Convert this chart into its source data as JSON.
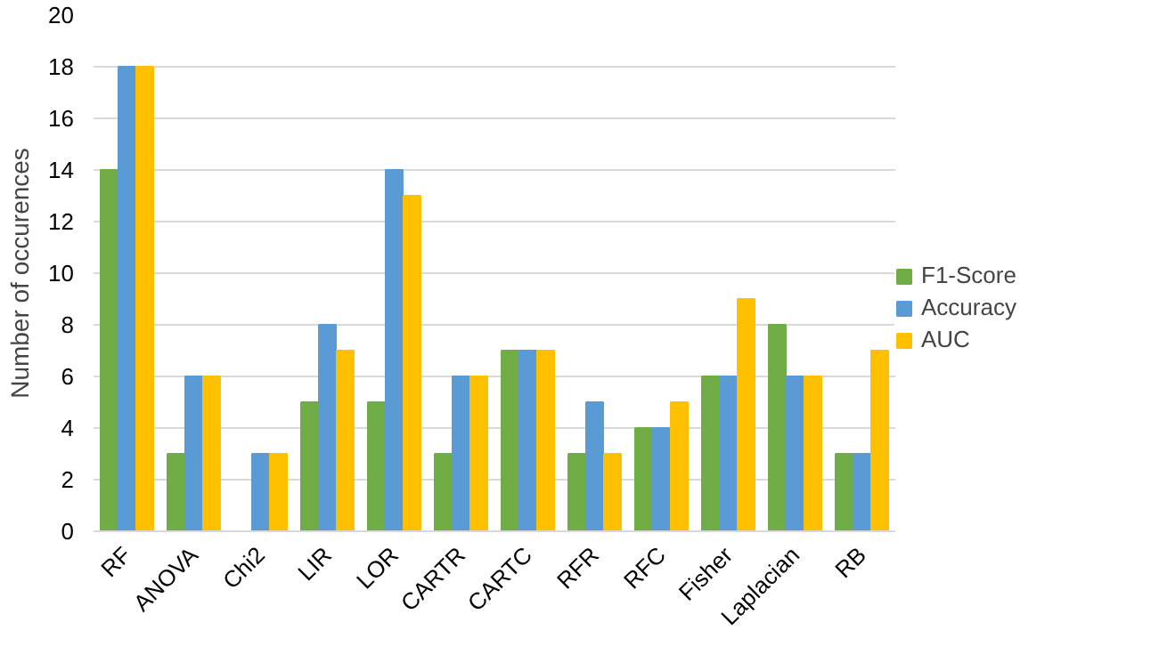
{
  "chart_data": {
    "type": "bar",
    "ylabel": "Number of occurences",
    "categories": [
      "RF",
      "ANOVA",
      "Chi2",
      "LIR",
      "LOR",
      "CARTR",
      "CARTC",
      "RFR",
      "RFC",
      "Fisher",
      "Laplacian",
      "RB"
    ],
    "series": [
      {
        "name": "F1-Score",
        "color": "#70ad47",
        "values": [
          14,
          3,
          0,
          5,
          5,
          3,
          7,
          3,
          4,
          6,
          8,
          3
        ]
      },
      {
        "name": "Accuracy",
        "color": "#5b9bd5",
        "values": [
          18,
          6,
          3,
          8,
          14,
          6,
          7,
          5,
          4,
          6,
          6,
          3
        ]
      },
      {
        "name": "AUC",
        "color": "#ffc000",
        "values": [
          18,
          6,
          3,
          7,
          13,
          6,
          7,
          3,
          5,
          9,
          6,
          7
        ]
      }
    ],
    "ylim": [
      0,
      20
    ],
    "yticks": [
      0,
      2,
      4,
      6,
      8,
      10,
      12,
      14,
      16,
      18,
      20
    ],
    "grid": "y",
    "legend": "right"
  }
}
